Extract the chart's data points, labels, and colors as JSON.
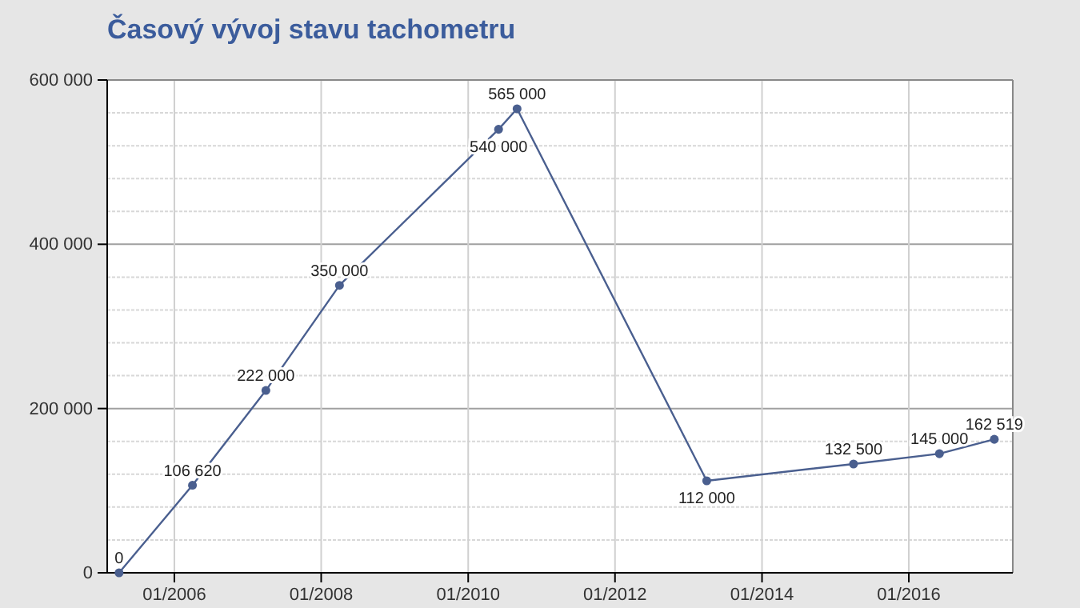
{
  "chart_data": {
    "type": "line",
    "title": "Časový vývoj stavu tachometru",
    "x": [
      "2005-04",
      "2006-04",
      "2007-04",
      "2008-04",
      "2010-06",
      "2010-09",
      "2013-04",
      "2015-04",
      "2016-06",
      "2017-03"
    ],
    "series": [
      {
        "color": "#4a5f8f",
        "values": [
          0,
          106620,
          222000,
          350000,
          540000,
          565000,
          112000,
          132500,
          145000,
          162519
        ]
      }
    ],
    "xlim": [
      "2005-02",
      "2017-06"
    ],
    "xticks": [
      {
        "value": "2006-01",
        "label": "01/2006"
      },
      {
        "value": "2008-01",
        "label": "01/2008"
      },
      {
        "value": "2010-01",
        "label": "01/2010"
      },
      {
        "value": "2012-01",
        "label": "01/2012"
      },
      {
        "value": "2014-01",
        "label": "01/2014"
      },
      {
        "value": "2016-01",
        "label": "01/2016"
      }
    ],
    "ylim": [
      0,
      600000
    ],
    "yticks": [
      {
        "value": 0,
        "label": "0"
      },
      {
        "value": 40000,
        "label": null
      },
      {
        "value": 80000,
        "label": null
      },
      {
        "value": 120000,
        "label": null
      },
      {
        "value": 160000,
        "label": null
      },
      {
        "value": 200000,
        "label": "200 000"
      },
      {
        "value": 240000,
        "label": null
      },
      {
        "value": 280000,
        "label": null
      },
      {
        "value": 320000,
        "label": null
      },
      {
        "value": 360000,
        "label": null
      },
      {
        "value": 400000,
        "label": "400 000"
      },
      {
        "value": 440000,
        "label": null
      },
      {
        "value": 480000,
        "label": null
      },
      {
        "value": 520000,
        "label": null
      },
      {
        "value": 560000,
        "label": null
      },
      {
        "value": 600000,
        "label": "600 000"
      }
    ],
    "grid": true,
    "marker": "circle",
    "line_style": "solid",
    "data_labels": true
  }
}
